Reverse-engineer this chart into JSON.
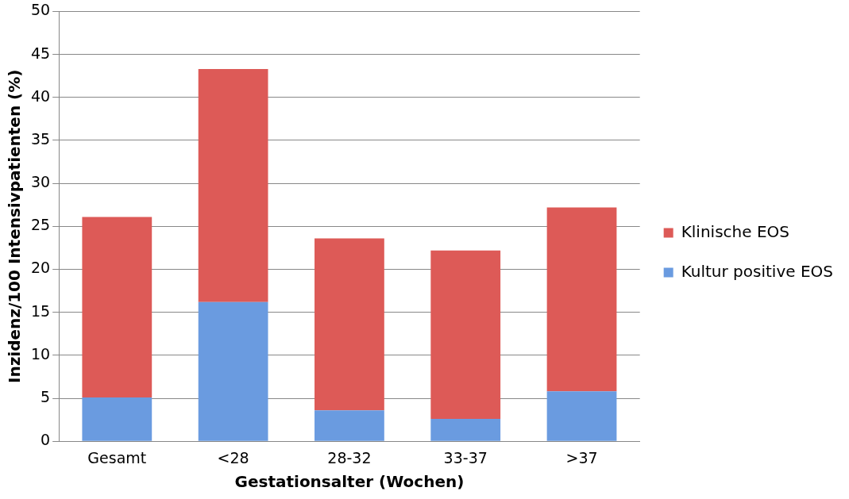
{
  "chart_data": {
    "type": "bar",
    "stacked": true,
    "xlabel": "Gestationsalter (Wochen)",
    "ylabel": "Inzidenz/100 Intensivpatienten (%)",
    "categories": [
      "Gesamt",
      "<28",
      "28-32",
      "33-37",
      ">37"
    ],
    "series": [
      {
        "name": "Kultur positive EOS",
        "color": "#6a9be0",
        "values": [
          5.1,
          16.2,
          3.6,
          2.6,
          5.8
        ]
      },
      {
        "name": "Klinische EOS",
        "color": "#dd5a57",
        "values": [
          21,
          27.1,
          20,
          19.6,
          21.4
        ]
      }
    ],
    "ylim": [
      0,
      50
    ],
    "yticks": [
      0,
      5,
      10,
      15,
      20,
      25,
      30,
      35,
      40,
      45,
      50
    ],
    "grid": "y",
    "legend": "right"
  }
}
